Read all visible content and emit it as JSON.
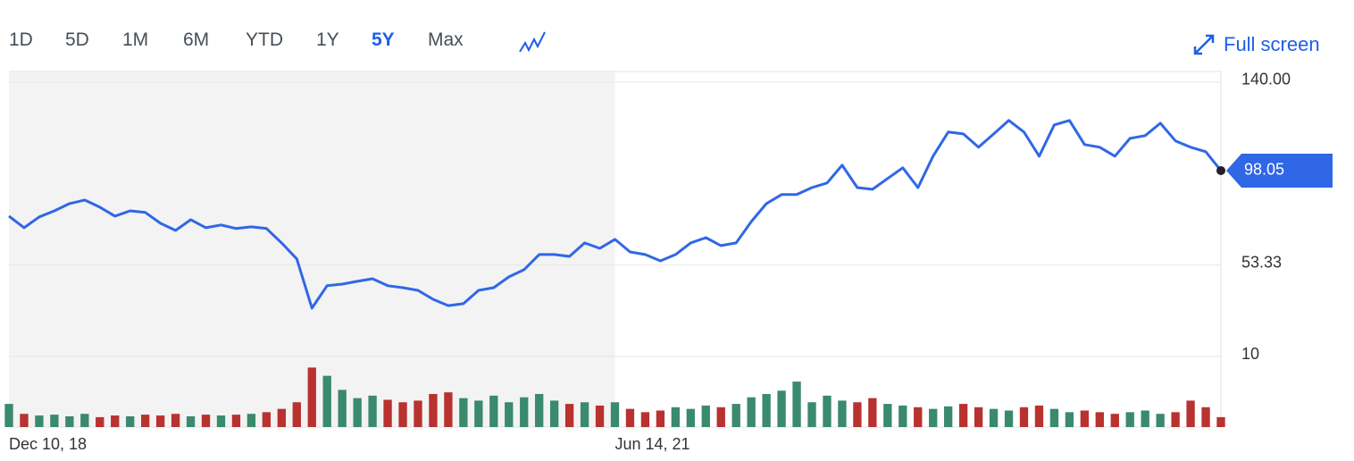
{
  "range_buttons": [
    "1D",
    "5D",
    "1M",
    "6M",
    "YTD",
    "1Y",
    "5Y",
    "Max"
  ],
  "selected_range": "5Y",
  "full_screen": "Full screen",
  "chart_data": {
    "type": "line",
    "categories": [
      "Dec 10, 18",
      null,
      null,
      null,
      null,
      null,
      null,
      null,
      null,
      null,
      null,
      null,
      null,
      null,
      null,
      null,
      null,
      null,
      null,
      null,
      null,
      null,
      null,
      null,
      null,
      null,
      null,
      null,
      null,
      null,
      null,
      null,
      null,
      null,
      null,
      null,
      null,
      null,
      null,
      null,
      "Jun 14, 21",
      null,
      null,
      null,
      null,
      null,
      null,
      null,
      null,
      null,
      null,
      null,
      null,
      null,
      null,
      null,
      null,
      null,
      null,
      null,
      null,
      null,
      null,
      null,
      null,
      null,
      null,
      null,
      null,
      null,
      null,
      null,
      null,
      null,
      null,
      null,
      null,
      null,
      null,
      null,
      null
    ],
    "series": [
      {
        "color": "#3067e6",
        "values": [
          76.5,
          71,
          76.1,
          79,
          82.4,
          84.1,
          80.7,
          76.5,
          79,
          78.2,
          73.1,
          69.7,
          74.8,
          71,
          72.3,
          70.6,
          71.4,
          70.6,
          63.8,
          56.2,
          32.9,
          43.5,
          44.3,
          45.6,
          46.8,
          43.5,
          42.6,
          41.3,
          37.1,
          34.1,
          35,
          41.3,
          42.6,
          47.7,
          51.1,
          58.3,
          58.3,
          57.4,
          63.8,
          61.2,
          65.5,
          59.5,
          58.3,
          55.3,
          58.3,
          63.8,
          66.3,
          62.5,
          63.8,
          73.9,
          82.4,
          86.7,
          86.7,
          90,
          92.2,
          100.6,
          90,
          89.2,
          94.3,
          99.4,
          90,
          104.9,
          116.3,
          115.4,
          109.1,
          115.4,
          121.8,
          116.3,
          104.9,
          119.7,
          121.8,
          110.4,
          109.1,
          104.9,
          113.3,
          114.6,
          120.5,
          112.1,
          109.1,
          107,
          98.05
        ]
      }
    ],
    "volume": [
      28,
      16,
      14,
      15,
      13,
      16,
      12,
      14,
      13,
      15,
      14,
      16,
      13,
      15,
      14,
      15,
      16,
      18,
      22,
      30,
      72,
      62,
      45,
      35,
      38,
      33,
      30,
      32,
      40,
      42,
      35,
      32,
      38,
      30,
      36,
      40,
      32,
      28,
      30,
      26,
      30,
      22,
      18,
      20,
      24,
      22,
      26,
      24,
      28,
      36,
      40,
      44,
      55,
      30,
      38,
      32,
      30,
      35,
      28,
      26,
      24,
      22,
      25,
      28,
      24,
      22,
      20,
      24,
      26,
      22,
      18,
      20,
      18,
      16,
      18,
      20,
      16,
      18,
      32,
      24,
      12
    ],
    "volume_lim": [
      0,
      80
    ],
    "up_color": "#3a8a6e",
    "down_color": "#b8322f",
    "ylim": [
      10,
      145
    ],
    "yticks": [
      10,
      53.33,
      {
        "value": 140,
        "label": "140.00"
      }
    ],
    "grid": true
  }
}
